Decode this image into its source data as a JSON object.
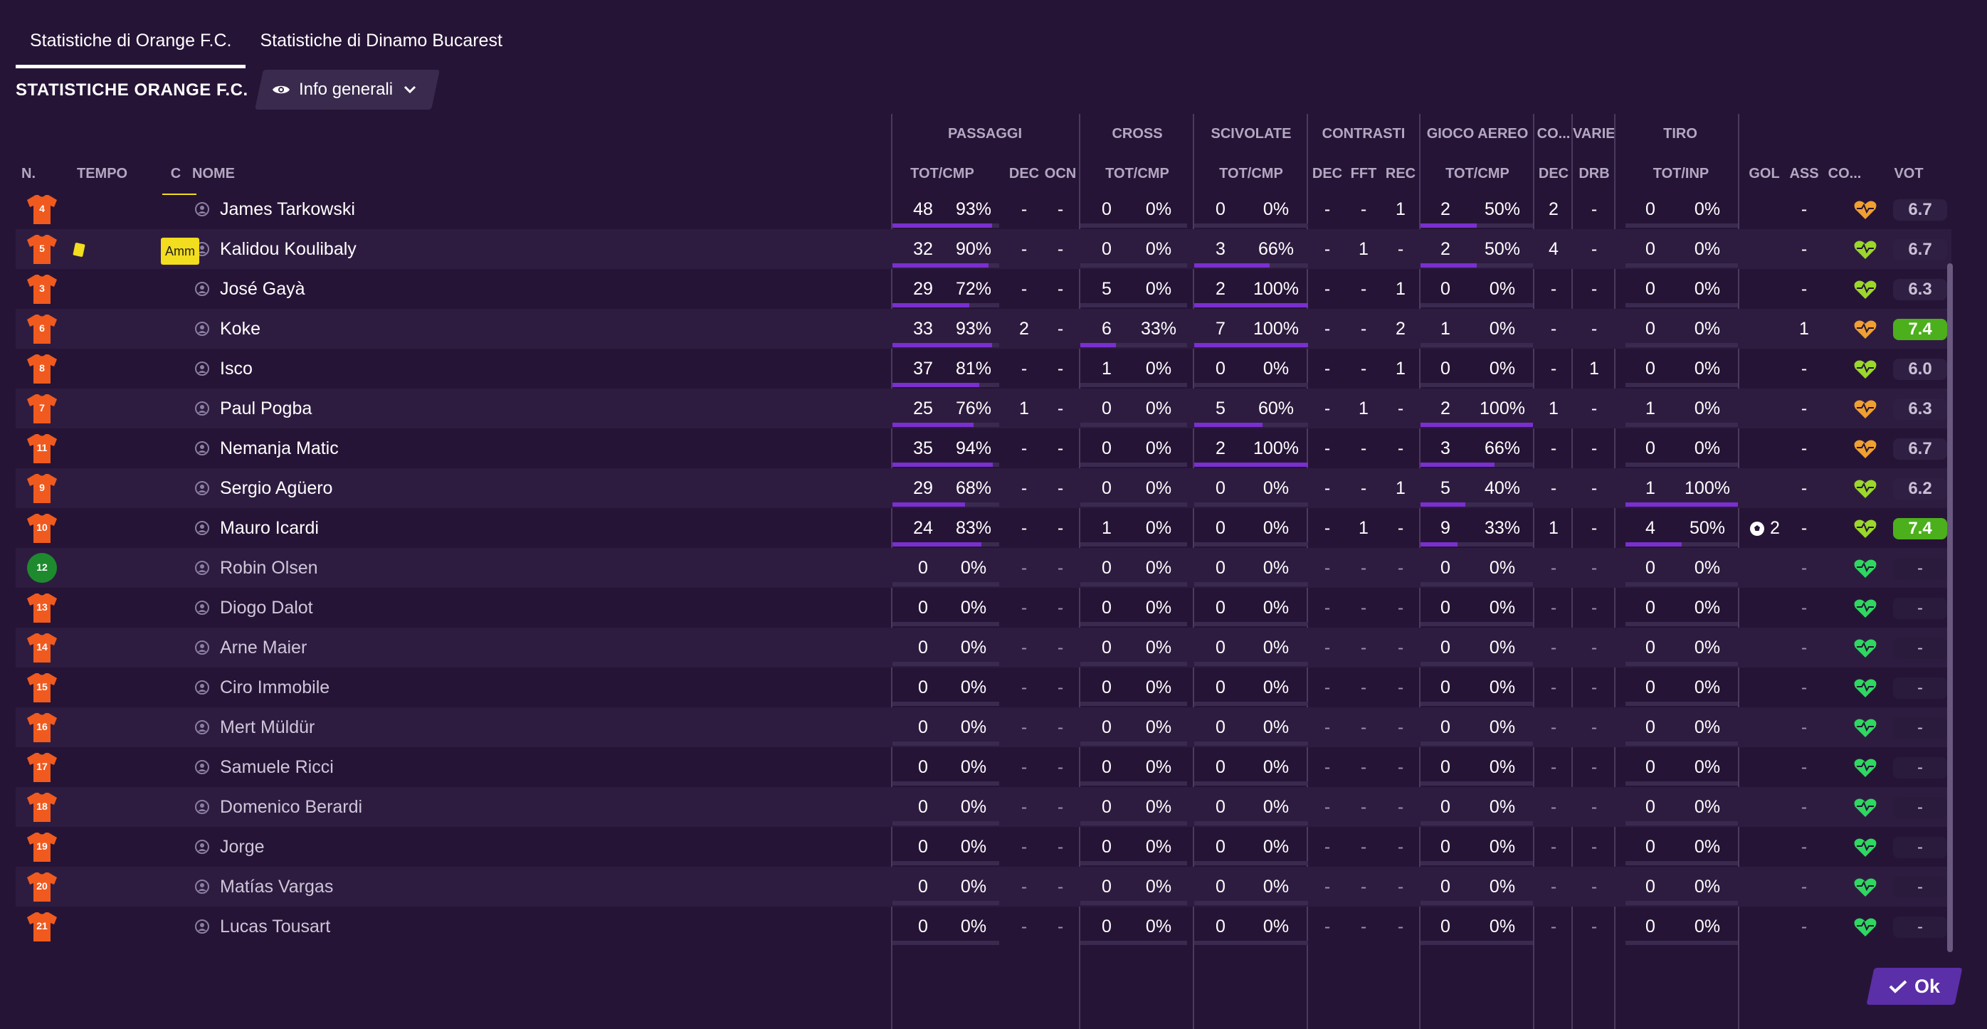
{
  "tabs": [
    {
      "label": "Statistiche di Orange F.C."
    },
    {
      "label": "Statistiche di Dinamo Bucarest"
    }
  ],
  "section_title": "STATISTICHE ORANGE F.C.",
  "view_dropdown": {
    "label": "Info generali"
  },
  "groups": {
    "passaggi": "PASSAGGI",
    "cross": "CROSS",
    "scivolate": "SCIVOLATE",
    "contrasti": "CONTRASTI",
    "gioco_aereo": "GIOCO AEREO",
    "co": "CO...",
    "varie": "VARIE",
    "tiro": "TIRO"
  },
  "columns": {
    "n": "N.",
    "tempo": "TEMPO",
    "c": "C",
    "nome": "NOME",
    "pass_tot": "TOT/CMP",
    "pass_dec": "DEC",
    "pass_ocn": "OCN",
    "cross_tot": "TOT/CMP",
    "sciv_tot": "TOT/CMP",
    "con_dec": "DEC",
    "con_fft": "FFT",
    "con_rec": "REC",
    "aer_tot": "TOT/CMP",
    "co_dec": "DEC",
    "var_drb": "DRB",
    "tiro_tot": "TOT/INP",
    "gol": "GOL",
    "ass": "ASS",
    "cond": "CO...",
    "vot": "VOT"
  },
  "badge_amm": "Amm",
  "ok_label": "Ok",
  "colors": {
    "shirt_orange": "#f05a1e",
    "shirt_green": "#1e8a2e",
    "bar": "#7a2fcf",
    "rating_high": "#4caf1c",
    "yellow": "#f2dd1e"
  },
  "players": [
    {
      "num": "4",
      "name": "James Tarkowski",
      "pt": "48",
      "pp": "93%",
      "pd": "-",
      "po": "-",
      "ct": "0",
      "cp": "0%",
      "st": "0",
      "sp": "0%",
      "cd": "-",
      "cf": "-",
      "cr": "1",
      "at": "2",
      "ap": "50%",
      "od": "2",
      "vd": "-",
      "tt": "0",
      "tp": "0%",
      "gol": "",
      "ass": "-",
      "vot": "6.7",
      "high": false,
      "sub": false,
      "heart": "orange",
      "pbar": 0.93,
      "sbar": 0,
      "abar": 0.5,
      "tbar": 0
    },
    {
      "num": "5",
      "name": "Kalidou Koulibaly",
      "pt": "32",
      "pp": "90%",
      "pd": "-",
      "po": "-",
      "ct": "0",
      "cp": "0%",
      "st": "3",
      "sp": "66%",
      "cd": "-",
      "cf": "1",
      "cr": "-",
      "at": "2",
      "ap": "50%",
      "od": "4",
      "vd": "-",
      "tt": "0",
      "tp": "0%",
      "gol": "",
      "ass": "-",
      "vot": "6.7",
      "high": false,
      "sub": false,
      "heart": "lime",
      "pbar": 0.9,
      "sbar": 0.66,
      "abar": 0.5,
      "tbar": 0
    },
    {
      "num": "3",
      "name": "José Gayà",
      "pt": "29",
      "pp": "72%",
      "pd": "-",
      "po": "-",
      "ct": "5",
      "cp": "0%",
      "st": "2",
      "sp": "100%",
      "cd": "-",
      "cf": "-",
      "cr": "1",
      "at": "0",
      "ap": "0%",
      "od": "-",
      "vd": "-",
      "tt": "0",
      "tp": "0%",
      "gol": "",
      "ass": "-",
      "vot": "6.3",
      "high": false,
      "sub": false,
      "heart": "lime",
      "pbar": 0.72,
      "sbar": 1,
      "abar": 0,
      "tbar": 0
    },
    {
      "num": "6",
      "name": "Koke",
      "pt": "33",
      "pp": "93%",
      "pd": "2",
      "po": "-",
      "ct": "6",
      "cp": "33%",
      "st": "7",
      "sp": "100%",
      "cd": "-",
      "cf": "-",
      "cr": "2",
      "at": "1",
      "ap": "0%",
      "od": "-",
      "vd": "-",
      "tt": "0",
      "tp": "0%",
      "gol": "",
      "ass": "1",
      "vot": "7.4",
      "high": true,
      "sub": false,
      "heart": "orange",
      "pbar": 0.93,
      "cbar": 0.33,
      "sbar": 1,
      "abar": 0,
      "tbar": 0
    },
    {
      "num": "8",
      "name": "Isco",
      "pt": "37",
      "pp": "81%",
      "pd": "-",
      "po": "-",
      "ct": "1",
      "cp": "0%",
      "st": "0",
      "sp": "0%",
      "cd": "-",
      "cf": "-",
      "cr": "1",
      "at": "0",
      "ap": "0%",
      "od": "-",
      "vd": "1",
      "tt": "0",
      "tp": "0%",
      "gol": "",
      "ass": "-",
      "vot": "6.0",
      "high": false,
      "sub": false,
      "heart": "lime",
      "pbar": 0.81,
      "sbar": 0,
      "abar": 0,
      "tbar": 0
    },
    {
      "num": "7",
      "name": "Paul Pogba",
      "pt": "25",
      "pp": "76%",
      "pd": "1",
      "po": "-",
      "ct": "0",
      "cp": "0%",
      "st": "5",
      "sp": "60%",
      "cd": "-",
      "cf": "1",
      "cr": "-",
      "at": "2",
      "ap": "100%",
      "od": "1",
      "vd": "-",
      "tt": "1",
      "tp": "0%",
      "gol": "",
      "ass": "-",
      "vot": "6.3",
      "high": false,
      "sub": false,
      "heart": "orange",
      "pbar": 0.76,
      "sbar": 0.6,
      "abar": 1,
      "tbar": 0
    },
    {
      "num": "11",
      "name": "Nemanja Matic",
      "pt": "35",
      "pp": "94%",
      "pd": "-",
      "po": "-",
      "ct": "0",
      "cp": "0%",
      "st": "2",
      "sp": "100%",
      "cd": "-",
      "cf": "-",
      "cr": "-",
      "at": "3",
      "ap": "66%",
      "od": "-",
      "vd": "-",
      "tt": "0",
      "tp": "0%",
      "gol": "",
      "ass": "-",
      "vot": "6.7",
      "high": false,
      "sub": false,
      "heart": "orange",
      "pbar": 0.94,
      "sbar": 1,
      "abar": 0.66,
      "tbar": 0
    },
    {
      "num": "9",
      "name": "Sergio Agüero",
      "pt": "29",
      "pp": "68%",
      "pd": "-",
      "po": "-",
      "ct": "0",
      "cp": "0%",
      "st": "0",
      "sp": "0%",
      "cd": "-",
      "cf": "-",
      "cr": "1",
      "at": "5",
      "ap": "40%",
      "od": "-",
      "vd": "-",
      "tt": "1",
      "tp": "100%",
      "gol": "",
      "ass": "-",
      "vot": "6.2",
      "high": false,
      "sub": false,
      "heart": "lime",
      "pbar": 0.68,
      "sbar": 0,
      "abar": 0.4,
      "tbar": 1
    },
    {
      "num": "10",
      "name": "Mauro Icardi",
      "pt": "24",
      "pp": "83%",
      "pd": "-",
      "po": "-",
      "ct": "1",
      "cp": "0%",
      "st": "0",
      "sp": "0%",
      "cd": "-",
      "cf": "1",
      "cr": "-",
      "at": "9",
      "ap": "33%",
      "od": "1",
      "vd": "-",
      "tt": "4",
      "tp": "50%",
      "gol": "2",
      "ass": "-",
      "vot": "7.4",
      "high": true,
      "sub": false,
      "heart": "lime",
      "pbar": 0.83,
      "sbar": 0,
      "abar": 0.33,
      "tbar": 0.5
    },
    {
      "num": "12",
      "name": "Robin Olsen",
      "pt": "0",
      "pp": "0%",
      "pd": "-",
      "po": "-",
      "ct": "0",
      "cp": "0%",
      "st": "0",
      "sp": "0%",
      "cd": "-",
      "cf": "-",
      "cr": "-",
      "at": "0",
      "ap": "0%",
      "od": "-",
      "vd": "-",
      "tt": "0",
      "tp": "0%",
      "gol": "",
      "ass": "-",
      "vot": "-",
      "high": false,
      "sub": true,
      "keeper": true,
      "heart": "green"
    },
    {
      "num": "13",
      "name": "Diogo Dalot",
      "pt": "0",
      "pp": "0%",
      "pd": "-",
      "po": "-",
      "ct": "0",
      "cp": "0%",
      "st": "0",
      "sp": "0%",
      "cd": "-",
      "cf": "-",
      "cr": "-",
      "at": "0",
      "ap": "0%",
      "od": "-",
      "vd": "-",
      "tt": "0",
      "tp": "0%",
      "gol": "",
      "ass": "-",
      "vot": "-",
      "high": false,
      "sub": true,
      "heart": "green"
    },
    {
      "num": "14",
      "name": "Arne Maier",
      "pt": "0",
      "pp": "0%",
      "pd": "-",
      "po": "-",
      "ct": "0",
      "cp": "0%",
      "st": "0",
      "sp": "0%",
      "cd": "-",
      "cf": "-",
      "cr": "-",
      "at": "0",
      "ap": "0%",
      "od": "-",
      "vd": "-",
      "tt": "0",
      "tp": "0%",
      "gol": "",
      "ass": "-",
      "vot": "-",
      "high": false,
      "sub": true,
      "heart": "green"
    },
    {
      "num": "15",
      "name": "Ciro Immobile",
      "pt": "0",
      "pp": "0%",
      "pd": "-",
      "po": "-",
      "ct": "0",
      "cp": "0%",
      "st": "0",
      "sp": "0%",
      "cd": "-",
      "cf": "-",
      "cr": "-",
      "at": "0",
      "ap": "0%",
      "od": "-",
      "vd": "-",
      "tt": "0",
      "tp": "0%",
      "gol": "",
      "ass": "-",
      "vot": "-",
      "high": false,
      "sub": true,
      "heart": "green"
    },
    {
      "num": "16",
      "name": "Mert Müldür",
      "pt": "0",
      "pp": "0%",
      "pd": "-",
      "po": "-",
      "ct": "0",
      "cp": "0%",
      "st": "0",
      "sp": "0%",
      "cd": "-",
      "cf": "-",
      "cr": "-",
      "at": "0",
      "ap": "0%",
      "od": "-",
      "vd": "-",
      "tt": "0",
      "tp": "0%",
      "gol": "",
      "ass": "-",
      "vot": "-",
      "high": false,
      "sub": true,
      "heart": "green"
    },
    {
      "num": "17",
      "name": "Samuele Ricci",
      "pt": "0",
      "pp": "0%",
      "pd": "-",
      "po": "-",
      "ct": "0",
      "cp": "0%",
      "st": "0",
      "sp": "0%",
      "cd": "-",
      "cf": "-",
      "cr": "-",
      "at": "0",
      "ap": "0%",
      "od": "-",
      "vd": "-",
      "tt": "0",
      "tp": "0%",
      "gol": "",
      "ass": "-",
      "vot": "-",
      "high": false,
      "sub": true,
      "heart": "green"
    },
    {
      "num": "18",
      "name": "Domenico Berardi",
      "pt": "0",
      "pp": "0%",
      "pd": "-",
      "po": "-",
      "ct": "0",
      "cp": "0%",
      "st": "0",
      "sp": "0%",
      "cd": "-",
      "cf": "-",
      "cr": "-",
      "at": "0",
      "ap": "0%",
      "od": "-",
      "vd": "-",
      "tt": "0",
      "tp": "0%",
      "gol": "",
      "ass": "-",
      "vot": "-",
      "high": false,
      "sub": true,
      "heart": "green"
    },
    {
      "num": "19",
      "name": "Jorge",
      "pt": "0",
      "pp": "0%",
      "pd": "-",
      "po": "-",
      "ct": "0",
      "cp": "0%",
      "st": "0",
      "sp": "0%",
      "cd": "-",
      "cf": "-",
      "cr": "-",
      "at": "0",
      "ap": "0%",
      "od": "-",
      "vd": "-",
      "tt": "0",
      "tp": "0%",
      "gol": "",
      "ass": "-",
      "vot": "-",
      "high": false,
      "sub": true,
      "heart": "green"
    },
    {
      "num": "20",
      "name": "Matías Vargas",
      "pt": "0",
      "pp": "0%",
      "pd": "-",
      "po": "-",
      "ct": "0",
      "cp": "0%",
      "st": "0",
      "sp": "0%",
      "cd": "-",
      "cf": "-",
      "cr": "-",
      "at": "0",
      "ap": "0%",
      "od": "-",
      "vd": "-",
      "tt": "0",
      "tp": "0%",
      "gol": "",
      "ass": "-",
      "vot": "-",
      "high": false,
      "sub": true,
      "heart": "green"
    },
    {
      "num": "21",
      "name": "Lucas Tousart",
      "pt": "0",
      "pp": "0%",
      "pd": "-",
      "po": "-",
      "ct": "0",
      "cp": "0%",
      "st": "0",
      "sp": "0%",
      "cd": "-",
      "cf": "-",
      "cr": "-",
      "at": "0",
      "ap": "0%",
      "od": "-",
      "vd": "-",
      "tt": "0",
      "tp": "0%",
      "gol": "",
      "ass": "-",
      "vot": "-",
      "high": false,
      "sub": true,
      "heart": "green"
    }
  ]
}
